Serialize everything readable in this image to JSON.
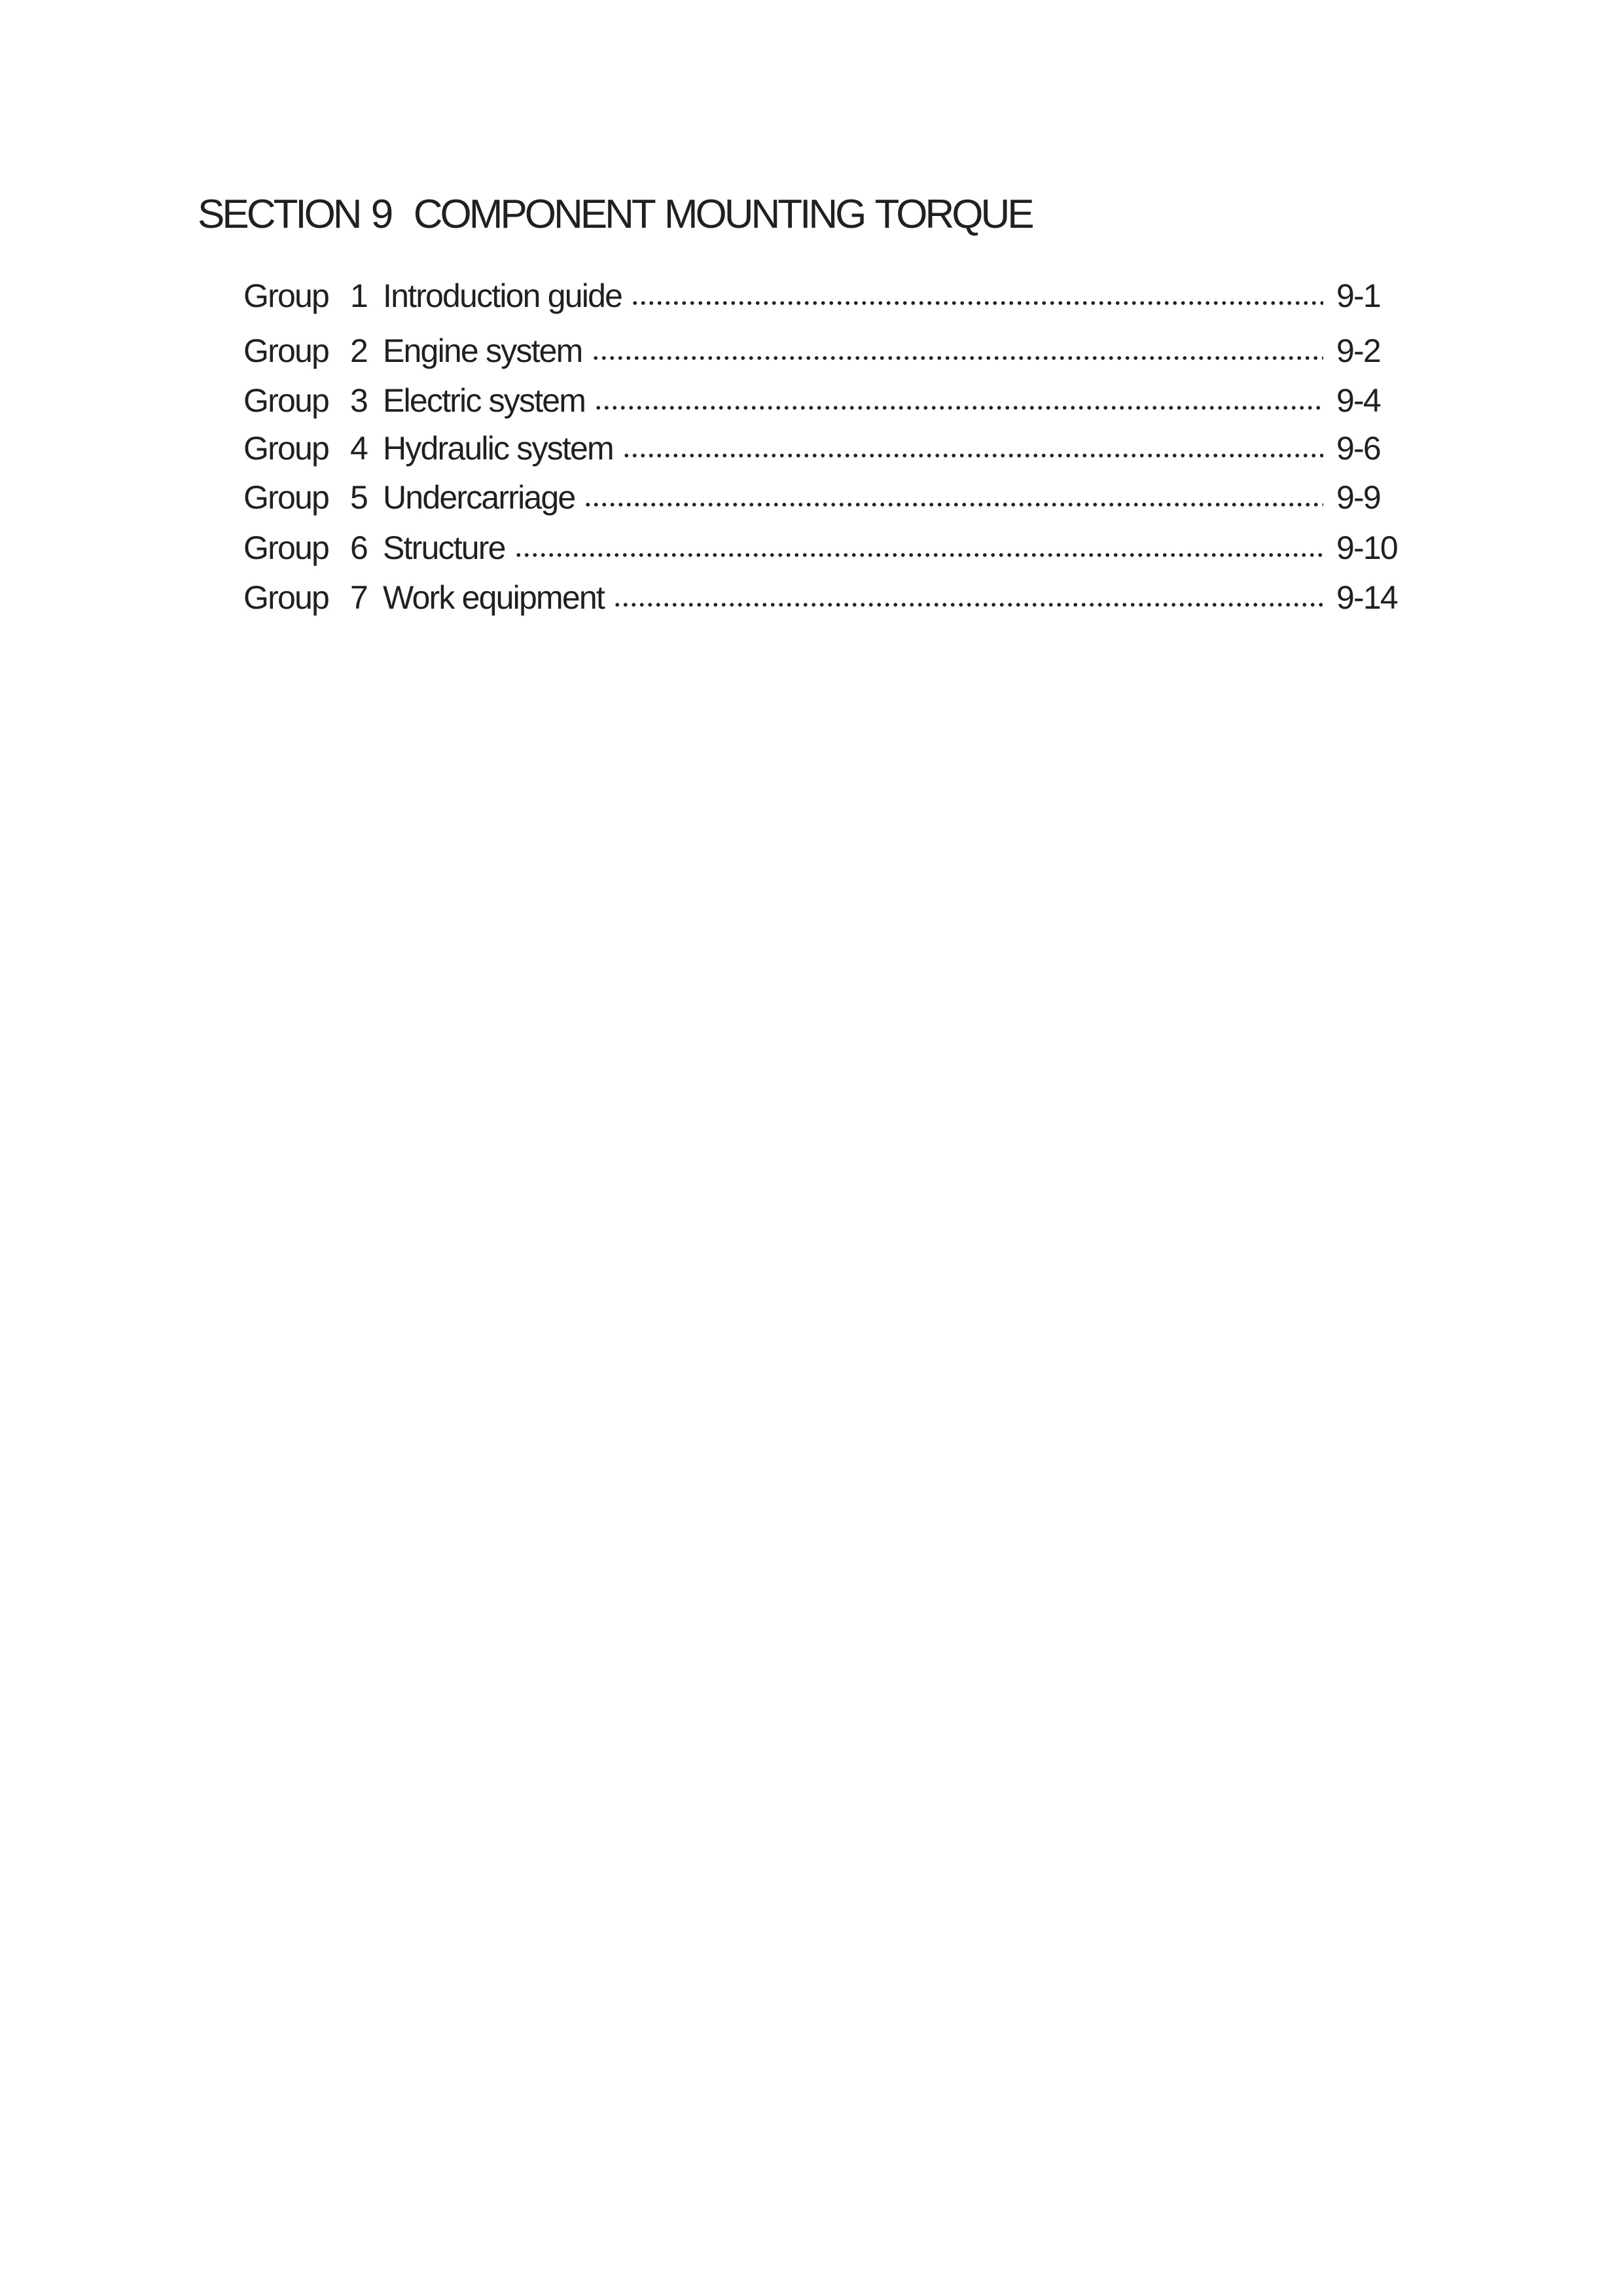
{
  "section_title": "SECTION 9  COMPONENT MOUNTING TORQUE",
  "toc": [
    {
      "group": "Group",
      "number": "1",
      "title": "Introduction guide",
      "page": "9-1"
    },
    {
      "group": "Group",
      "number": "2",
      "title": "Engine system",
      "page": "9-2"
    },
    {
      "group": "Group",
      "number": "3",
      "title": "Electric system",
      "page": "9-4"
    },
    {
      "group": "Group",
      "number": "4",
      "title": "Hydraulic system",
      "page": "9-6"
    },
    {
      "group": "Group",
      "number": "5",
      "title": "Undercarriage",
      "page": "9-9"
    },
    {
      "group": "Group",
      "number": "6",
      "title": "Structure",
      "page": "9-10"
    },
    {
      "group": "Group",
      "number": "7",
      "title": "Work equipment",
      "page": "9-14"
    }
  ]
}
